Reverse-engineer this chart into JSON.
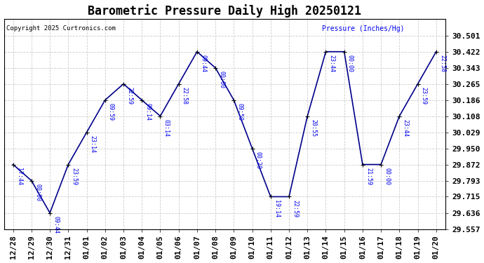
{
  "title": "Barometric Pressure Daily High 20250121",
  "copyright": "Copyright 2025 Curtronics.com",
  "ylabel": "Pressure (Inches/Hg)",
  "background_color": "#ffffff",
  "plot_bg_color": "#ffffff",
  "line_color": "#00008B",
  "point_color": "#000000",
  "label_color": "#0000EE",
  "dates": [
    "12/28",
    "12/29",
    "12/30",
    "12/31",
    "01/01",
    "01/02",
    "01/03",
    "01/04",
    "01/05",
    "01/06",
    "01/07",
    "01/08",
    "01/09",
    "01/10",
    "01/11",
    "01/12",
    "01/13",
    "01/14",
    "01/15",
    "01/16",
    "01/17",
    "01/18",
    "01/19",
    "01/20"
  ],
  "values": [
    29.872,
    29.793,
    29.636,
    29.872,
    30.029,
    30.186,
    30.265,
    30.186,
    30.108,
    30.265,
    30.422,
    30.343,
    30.186,
    29.95,
    29.715,
    29.715,
    30.108,
    30.422,
    30.422,
    29.872,
    29.872,
    30.108,
    30.265,
    30.422
  ],
  "time_labels": [
    "17:44",
    "00:00",
    "09:44",
    "23:59",
    "23:14",
    "09:59",
    "22:59",
    "09:14",
    "03:14",
    "22:58",
    "09:44",
    "00:00",
    "09:59",
    "00:29",
    "19:14",
    "22:59",
    "20:55",
    "23:44",
    "00:00",
    "21:59",
    "00:00",
    "23:44",
    "23:59",
    "22:58"
  ],
  "ylim_min": 29.557,
  "ylim_max": 30.58,
  "yticks": [
    29.557,
    29.636,
    29.715,
    29.793,
    29.872,
    29.95,
    30.029,
    30.108,
    30.186,
    30.265,
    30.343,
    30.422,
    30.501
  ],
  "grid_color": "#cccccc",
  "title_fontsize": 12,
  "tick_fontsize": 8,
  "label_fontsize": 7
}
